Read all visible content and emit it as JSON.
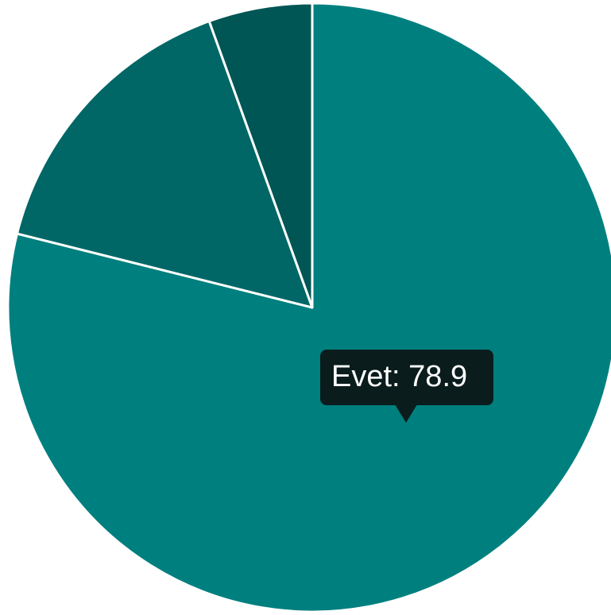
{
  "chart_data": {
    "type": "pie",
    "categories": [
      "Evet",
      null,
      null
    ],
    "values": [
      78.9,
      15.6,
      5.5
    ],
    "colors": [
      "#007f7f",
      "#006666",
      "#005555"
    ]
  }
}
